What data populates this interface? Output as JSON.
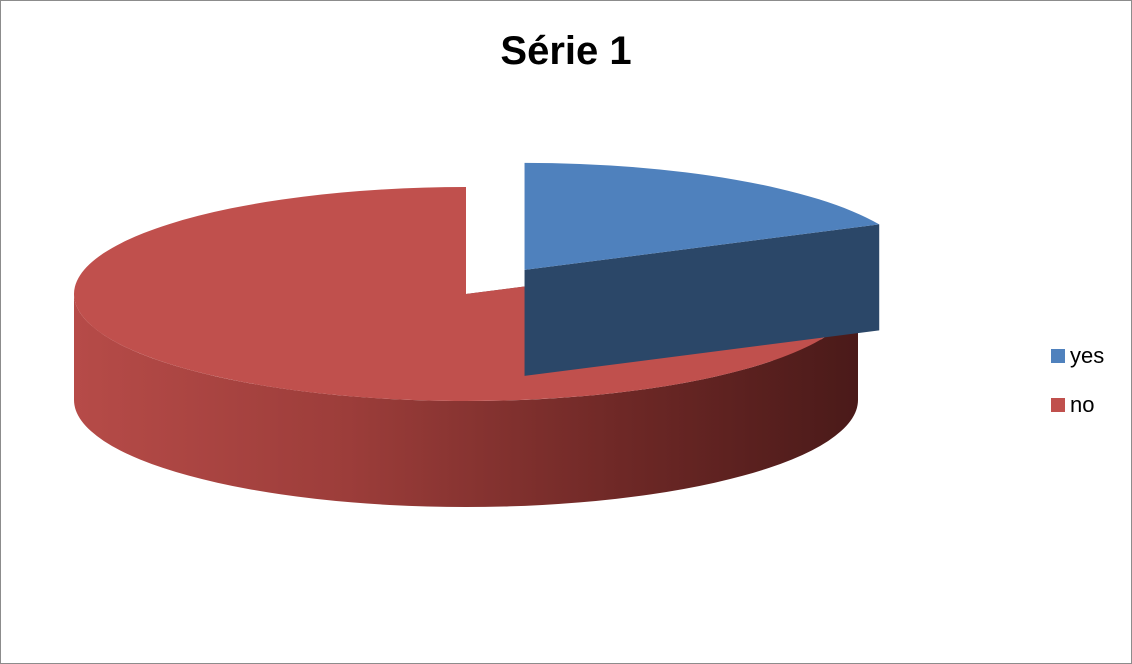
{
  "chart_data": {
    "type": "pie",
    "title": "Série 1",
    "categories": [
      "yes",
      "no"
    ],
    "values": [
      18,
      82
    ],
    "colors": [
      "#4f81bd",
      "#c0504d"
    ],
    "exploded": "yes",
    "style": "3d",
    "legend_position": "right"
  }
}
